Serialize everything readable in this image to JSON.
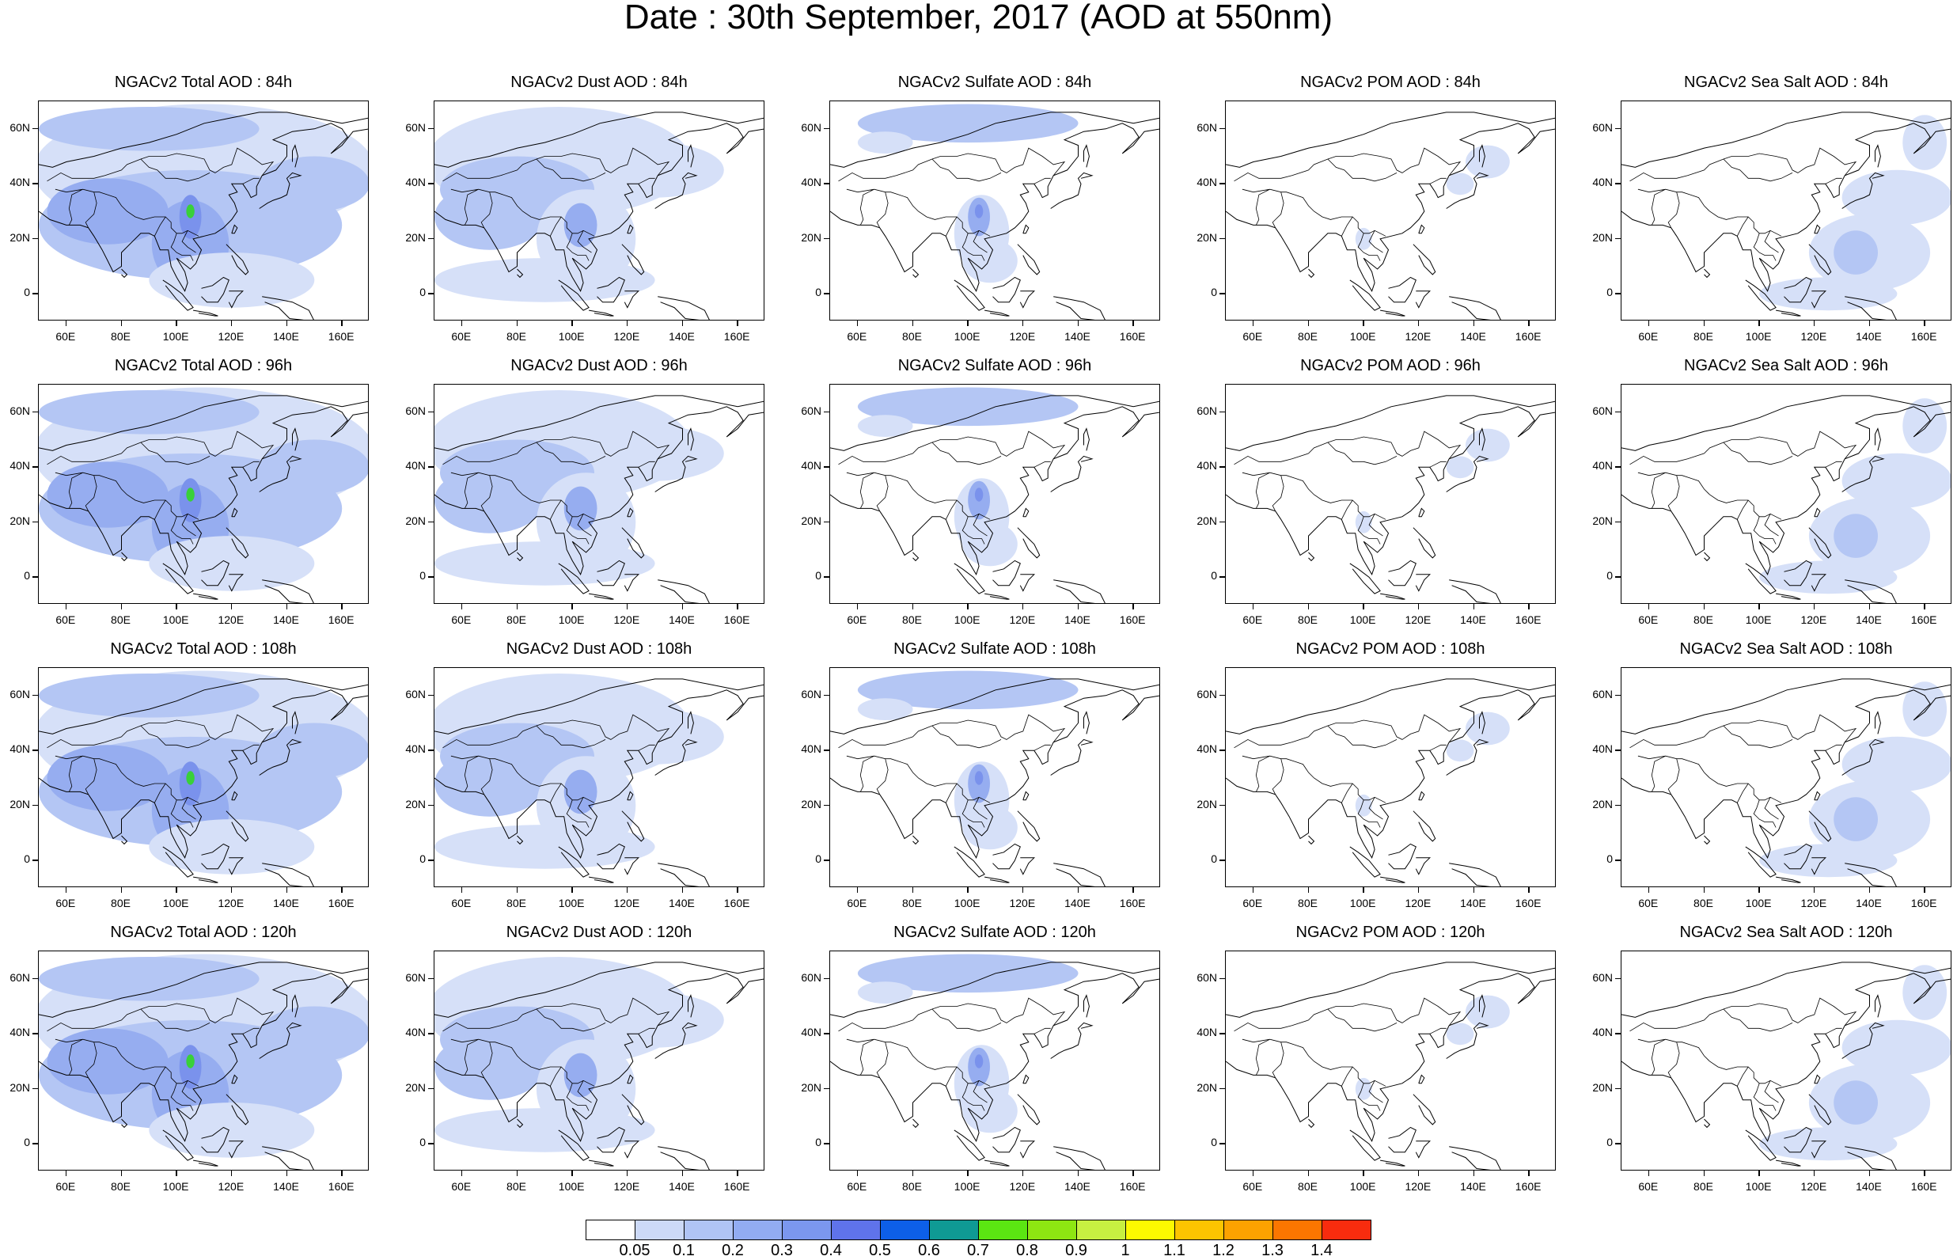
{
  "title": "Date : 30th September, 2017 (AOD at 550nm)",
  "lat_ticks": [
    "60N",
    "40N",
    "20N",
    "0"
  ],
  "lon_ticks": [
    "60E",
    "80E",
    "100E",
    "120E",
    "140E",
    "160E"
  ],
  "panels": [
    [
      "NGACv2 Total AOD : 84h",
      "NGACv2 Dust AOD : 84h",
      "NGACv2 Sulfate AOD : 84h",
      "NGACv2 POM AOD : 84h",
      "NGACv2 Sea Salt AOD : 84h"
    ],
    [
      "NGACv2 Total AOD : 96h",
      "NGACv2 Dust AOD : 96h",
      "NGACv2 Sulfate AOD : 96h",
      "NGACv2 POM AOD : 96h",
      "NGACv2 Sea Salt AOD : 96h"
    ],
    [
      "NGACv2 Total AOD : 108h",
      "NGACv2 Dust AOD : 108h",
      "NGACv2 Sulfate AOD : 108h",
      "NGACv2 POM AOD : 108h",
      "NGACv2 Sea Salt AOD : 108h"
    ],
    [
      "NGACv2 Total AOD : 120h",
      "NGACv2 Dust AOD : 120h",
      "NGACv2 Sulfate AOD : 120h",
      "NGACv2 POM AOD : 120h",
      "NGACv2 Sea Salt  AOD : 120h"
    ]
  ],
  "colorbar": {
    "labels": [
      "0.05",
      "0.1",
      "0.2",
      "0.3",
      "0.4",
      "0.5",
      "0.6",
      "0.7",
      "0.8",
      "0.9",
      "1",
      "1.1",
      "1.2",
      "1.3",
      "1.4"
    ],
    "colors": [
      "#ffffff",
      "#ccd9f7",
      "#b0c4f5",
      "#92acf2",
      "#7b97ef",
      "#5f73eb",
      "#0d5fe8",
      "#0f9a94",
      "#5be612",
      "#8ee612",
      "#c7f041",
      "#fcf900",
      "#fcc400",
      "#fca200",
      "#fb7600",
      "#f82c0e"
    ]
  },
  "palette": {
    "light": "#d6e0f8",
    "mid": "#b4c6f4",
    "strong": "#96adf0",
    "deep": "#7a92ec",
    "hot_green": "#39d03a",
    "hot_yellow": "#f0f040"
  }
}
